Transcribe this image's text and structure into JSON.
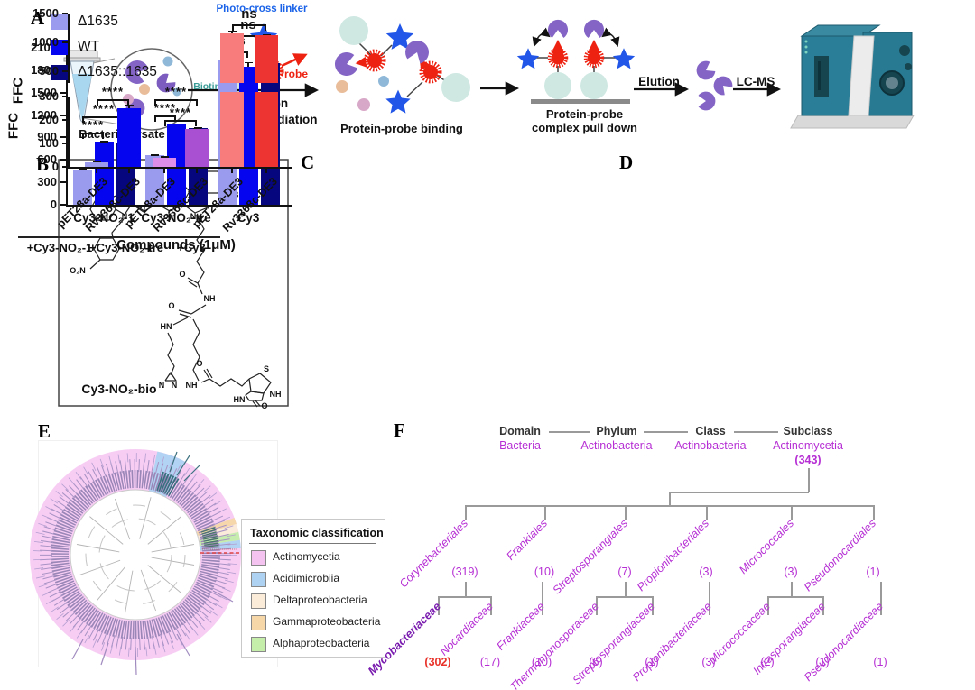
{
  "panelA": {
    "letter": "A",
    "labels": {
      "bacterial_lysate": "Bacterial lysate",
      "photo_cross_linker": "Photo-cross linker",
      "biotin": "Biotin",
      "probe": "Probe",
      "incubation": "Incubation",
      "uv_irradiation": "UV irradiation",
      "protein_probe_binding": "Protein-probe binding",
      "pulldown_1": "Protein-probe",
      "pulldown_2": "complex pull down",
      "elution": "Elution",
      "lcms": "LC-MS"
    }
  },
  "panelB": {
    "letter": "B",
    "compound": "Cy3-NO₂-bio",
    "atoms": [
      "N",
      "O₂N",
      "N",
      "⊕",
      "Br⊖",
      "O",
      "NH",
      "O",
      "HN",
      "N",
      "N",
      "NH",
      "O",
      "S",
      "NH",
      "HN",
      "O"
    ]
  },
  "panelC": {
    "letter": "C"
  },
  "panelD": {
    "letter": "D"
  },
  "panelE": {
    "letter": "E",
    "legend_title": "Taxonomic classification",
    "legend": [
      {
        "label": "Actinomycetia",
        "color": "#f4c3ef"
      },
      {
        "label": "Acidimicrobiia",
        "color": "#aed3f2"
      },
      {
        "label": "Deltaproteobacteria",
        "color": "#faecd8"
      },
      {
        "label": "Gammaproteobacteria",
        "color": "#f6d7a8"
      },
      {
        "label": "Alphaproteobacteria",
        "color": "#c4eeaa"
      }
    ]
  },
  "panelF": {
    "letter": "F",
    "colors": {
      "magenta": "#b62fd4",
      "highlight_name": "#7a1caf",
      "highlight_count": "#e8322a"
    },
    "ranks": [
      {
        "rank": "Domain",
        "name": "Bacteria"
      },
      {
        "rank": "Phylum",
        "name": "Actinobacteria"
      },
      {
        "rank": "Class",
        "name": "Actinobacteria"
      },
      {
        "rank": "Subclass",
        "name": "Actinomycetia",
        "count": "(343)"
      }
    ],
    "orders": [
      {
        "name": "Corynebacteriales",
        "count": "(319)",
        "children": [
          0,
          1
        ]
      },
      {
        "name": "Frankiales",
        "count": "(10)",
        "children": [
          2
        ]
      },
      {
        "name": "Streptosporangiales",
        "count": "(7)",
        "children": [
          3,
          4
        ]
      },
      {
        "name": "Propionibacteriales",
        "count": "(3)",
        "children": [
          5
        ]
      },
      {
        "name": "Micrococcales",
        "count": "(3)",
        "children": [
          6,
          7
        ]
      },
      {
        "name": "Pseudonocardiales",
        "count": "(1)",
        "children": [
          8
        ]
      }
    ],
    "families": [
      {
        "name": "Mycobacteriaceae",
        "count": "(302)",
        "highlight": true
      },
      {
        "name": "Nocardiaceae",
        "count": "(17)"
      },
      {
        "name": "Frankiaceae",
        "count": "(10)"
      },
      {
        "name": "Thermomonosporaceae",
        "count": "(6)"
      },
      {
        "name": "Streptosporangiaceae",
        "count": "(1)"
      },
      {
        "name": "Propionibacteriaceae",
        "count": "(3)"
      },
      {
        "name": "Micrococcaceae",
        "count": "(2)"
      },
      {
        "name": "Intrasporangiaceae",
        "count": "(1)"
      },
      {
        "name": "Pseudonocardiaceae",
        "count": "(1)"
      }
    ]
  },
  "chart_data": [
    {
      "id": "panelC",
      "type": "bar",
      "title": "",
      "ylabel": "FFC",
      "xlabel": "Compounds (1μM)",
      "ylim": [
        0,
        2100
      ],
      "yticks": [
        0,
        300,
        600,
        900,
        1200,
        1500,
        1800,
        2100
      ],
      "grid": false,
      "legend_position": "upper-left",
      "categories": [
        "Cy3-NO₂-1",
        "Cy3-NO₂-tre",
        "Cy3"
      ],
      "series": [
        {
          "name": "Δ1635",
          "color": "#9a9aee",
          "values": [
            470,
            660,
            1930
          ],
          "errors": [
            15,
            15,
            45
          ]
        },
        {
          "name": "WT",
          "color": "#0505f0",
          "values": [
            840,
            1075,
            1850
          ],
          "errors": [
            15,
            15,
            60
          ]
        },
        {
          "name": "Δ1635::1635",
          "color": "#06067e",
          "values": [
            820,
            1025,
            1900
          ],
          "errors": [
            12,
            15,
            120
          ]
        }
      ],
      "annotations": [
        {
          "group": 0,
          "from": 0,
          "to": 1,
          "label": "****"
        },
        {
          "group": 0,
          "from": 0,
          "to": 2,
          "label": "****"
        },
        {
          "group": 1,
          "from": 0,
          "to": 1,
          "label": "****"
        },
        {
          "group": 1,
          "from": 0,
          "to": 2,
          "label": "****"
        },
        {
          "group": 2,
          "from": 0,
          "to": 1,
          "label": "ns"
        },
        {
          "group": 2,
          "from": 0,
          "to": 2,
          "label": "ns"
        }
      ]
    },
    {
      "id": "panelD",
      "type": "bar-broken-axis",
      "ylabel": "FFC",
      "upper_ticks": [
        1500,
        1000,
        500
      ],
      "lower_ticks": [
        300,
        200,
        100,
        0
      ],
      "bars": [
        {
          "label": "pET28a-DE3",
          "value": 20,
          "error": 5,
          "color": "#9a9aee"
        },
        {
          "label": "Rv3368c-DE3",
          "value": 250,
          "error": 15,
          "color": "#0505f0"
        },
        {
          "label": "pET28a-DE3",
          "value": 38,
          "error": 8,
          "color": "#dc8ee9"
        },
        {
          "label": "Rv3368c-DE3",
          "value": 160,
          "error": 6,
          "color": "#a94fd2"
        },
        {
          "label": "pET28a-DE3",
          "value": 1160,
          "error": 45,
          "color": "#f97c7c"
        },
        {
          "label": "Rv3368c-DE3",
          "value": 1120,
          "error": 25,
          "color": "#ee3333"
        }
      ],
      "groups": [
        {
          "label": "+Cy3-NO₂-1",
          "bars": [
            0,
            1
          ]
        },
        {
          "label": "+Cy3-NO₂-tre",
          "bars": [
            2,
            3
          ]
        },
        {
          "label": "+Cy3",
          "bars": [
            4,
            5
          ]
        }
      ],
      "annotations": [
        {
          "from": 0,
          "to": 1,
          "label": "****"
        },
        {
          "from": 2,
          "to": 3,
          "label": "****"
        },
        {
          "from": 4,
          "to": 5,
          "label": "ns"
        }
      ]
    }
  ]
}
